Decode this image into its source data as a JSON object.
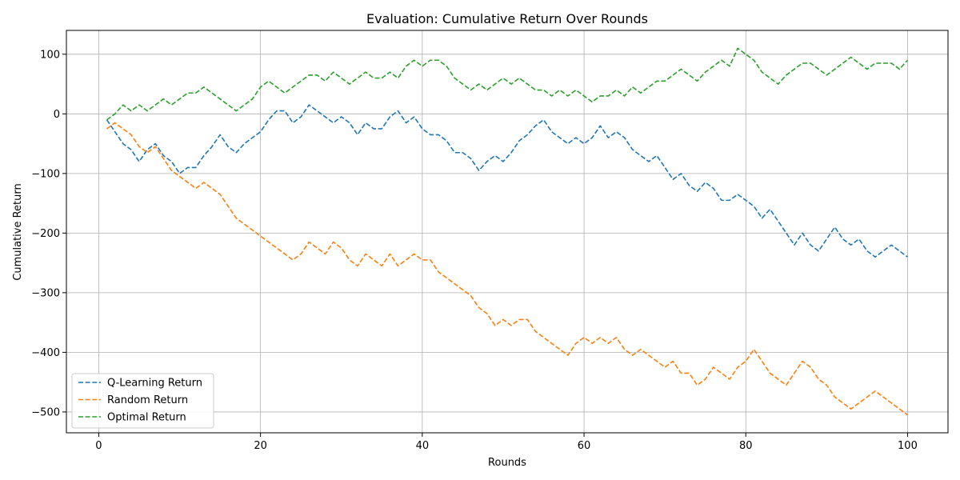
{
  "chart_data": {
    "type": "line",
    "title": "Evaluation: Cumulative Return Over Rounds",
    "xlabel": "Rounds",
    "ylabel": "Cumulative Return",
    "xlim": [
      -4,
      105
    ],
    "ylim": [
      -535,
      140
    ],
    "xticks": [
      0,
      20,
      40,
      60,
      80,
      100
    ],
    "yticks": [
      -500,
      -400,
      -300,
      -200,
      -100,
      0,
      100
    ],
    "grid": true,
    "legend_position": "lower-left",
    "line_style": "dashed",
    "x": [
      1,
      2,
      3,
      4,
      5,
      6,
      7,
      8,
      9,
      10,
      11,
      12,
      13,
      14,
      15,
      16,
      17,
      18,
      19,
      20,
      21,
      22,
      23,
      24,
      25,
      26,
      27,
      28,
      29,
      30,
      31,
      32,
      33,
      34,
      35,
      36,
      37,
      38,
      39,
      40,
      41,
      42,
      43,
      44,
      45,
      46,
      47,
      48,
      49,
      50,
      51,
      52,
      53,
      54,
      55,
      56,
      57,
      58,
      59,
      60,
      61,
      62,
      63,
      64,
      65,
      66,
      67,
      68,
      69,
      70,
      71,
      72,
      73,
      74,
      75,
      76,
      77,
      78,
      79,
      80,
      81,
      82,
      83,
      84,
      85,
      86,
      87,
      88,
      89,
      90,
      91,
      92,
      93,
      94,
      95,
      96,
      97,
      98,
      99,
      100
    ],
    "series": [
      {
        "name": "Q-Learning Return",
        "color": "#1f77b4",
        "values": [
          -10,
          -30,
          -50,
          -60,
          -80,
          -60,
          -50,
          -70,
          -80,
          -100,
          -90,
          -90,
          -70,
          -55,
          -35,
          -55,
          -65,
          -50,
          -40,
          -30,
          -10,
          5,
          5,
          -15,
          -5,
          15,
          5,
          -5,
          -15,
          -5,
          -15,
          -35,
          -15,
          -25,
          -25,
          -5,
          5,
          -15,
          -5,
          -25,
          -35,
          -35,
          -45,
          -65,
          -65,
          -75,
          -95,
          -80,
          -70,
          -80,
          -65,
          -45,
          -35,
          -20,
          -10,
          -30,
          -40,
          -50,
          -40,
          -50,
          -40,
          -20,
          -40,
          -30,
          -40,
          -60,
          -70,
          -80,
          -70,
          -90,
          -110,
          -100,
          -120,
          -130,
          -115,
          -125,
          -145,
          -145,
          -135,
          -145,
          -155,
          -175,
          -160,
          -180,
          -200,
          -220,
          -200,
          -220,
          -230,
          -210,
          -190,
          -210,
          -220,
          -210,
          -230,
          -240,
          -230,
          -220,
          -230,
          -240
        ]
      },
      {
        "name": "Random Return",
        "color": "#ff7f0e",
        "values": [
          -25,
          -15,
          -25,
          -35,
          -55,
          -65,
          -55,
          -75,
          -95,
          -105,
          -115,
          -125,
          -115,
          -125,
          -135,
          -155,
          -175,
          -185,
          -195,
          -205,
          -215,
          -225,
          -235,
          -245,
          -235,
          -215,
          -225,
          -235,
          -215,
          -225,
          -245,
          -255,
          -235,
          -245,
          -255,
          -235,
          -255,
          -245,
          -235,
          -245,
          -245,
          -265,
          -275,
          -285,
          -295,
          -305,
          -325,
          -335,
          -355,
          -345,
          -355,
          -345,
          -345,
          -365,
          -375,
          -385,
          -395,
          -405,
          -385,
          -375,
          -385,
          -375,
          -385,
          -375,
          -395,
          -405,
          -395,
          -405,
          -415,
          -425,
          -415,
          -435,
          -435,
          -455,
          -445,
          -425,
          -435,
          -445,
          -425,
          -415,
          -395,
          -415,
          -435,
          -445,
          -455,
          -435,
          -415,
          -425,
          -445,
          -455,
          -475,
          -485,
          -495,
          -485,
          -475,
          -465,
          -475,
          -485,
          -495,
          -505
        ]
      },
      {
        "name": "Optimal Return",
        "color": "#2ca02c",
        "values": [
          -10,
          0,
          15,
          5,
          15,
          5,
          15,
          25,
          15,
          25,
          35,
          35,
          45,
          35,
          25,
          15,
          5,
          15,
          25,
          45,
          55,
          45,
          35,
          45,
          55,
          65,
          65,
          55,
          70,
          60,
          50,
          60,
          70,
          60,
          60,
          70,
          60,
          80,
          90,
          80,
          90,
          90,
          80,
          60,
          50,
          40,
          50,
          40,
          50,
          60,
          50,
          60,
          50,
          40,
          40,
          30,
          40,
          30,
          40,
          30,
          20,
          30,
          30,
          40,
          30,
          45,
          35,
          45,
          55,
          55,
          65,
          75,
          65,
          55,
          70,
          80,
          90,
          80,
          110,
          100,
          90,
          70,
          60,
          50,
          65,
          75,
          85,
          85,
          75,
          65,
          75,
          85,
          95,
          85,
          75,
          85,
          85,
          85,
          75,
          90
        ]
      }
    ]
  }
}
